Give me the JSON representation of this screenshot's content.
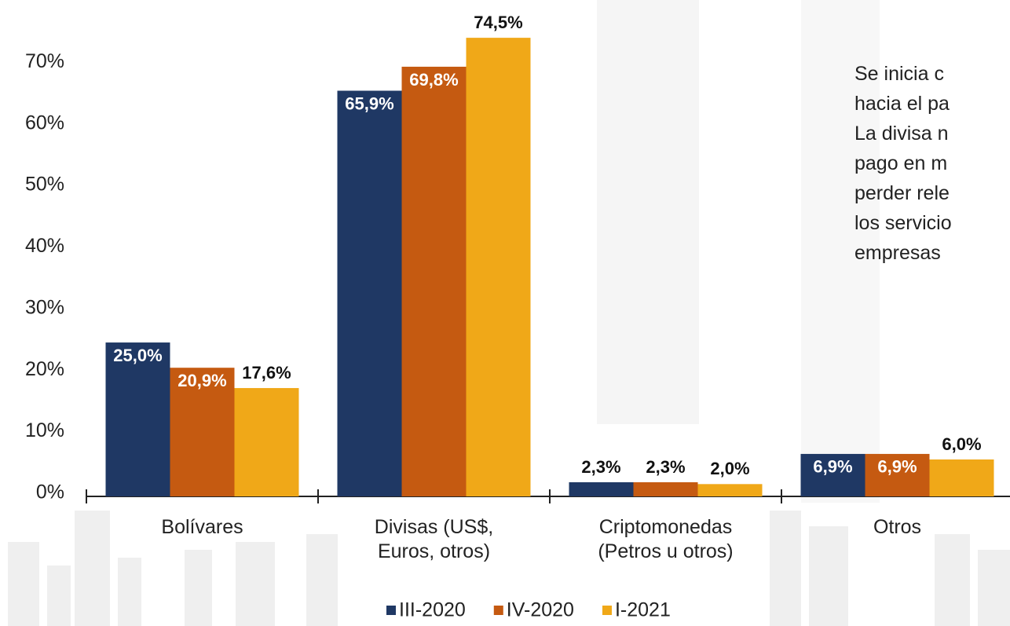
{
  "chart_data": {
    "type": "bar",
    "categories": [
      "Bolívares",
      "Divisas (US$, Euros, otros)",
      "Criptomonedas (Petros u otros)",
      "Otros"
    ],
    "series": [
      {
        "name": "III-2020",
        "color": "#1f3864",
        "values": [
          25.0,
          65.9,
          2.3,
          6.9
        ],
        "value_labels": [
          "25,0%",
          "65,9%",
          "2,3%",
          "6,9%"
        ]
      },
      {
        "name": "IV-2020",
        "color": "#c55a11",
        "values": [
          20.9,
          69.8,
          2.3,
          6.9
        ],
        "value_labels": [
          "20,9%",
          "69,8%",
          "2,3%",
          "6,9%"
        ]
      },
      {
        "name": "I-2021",
        "color": "#f0a818",
        "values": [
          17.6,
          74.5,
          2.0,
          6.0
        ],
        "value_labels": [
          "17,6%",
          "74,5%",
          "2,0%",
          "6,0%"
        ]
      }
    ],
    "ylim": [
      0,
      80
    ],
    "yticks": [
      {
        "value": 0,
        "label": "0%"
      },
      {
        "value": 10,
        "label": "10%"
      },
      {
        "value": 20,
        "label": "20%"
      },
      {
        "value": 30,
        "label": "30%"
      },
      {
        "value": 40,
        "label": "40%"
      },
      {
        "value": 50,
        "label": "50%"
      },
      {
        "value": 60,
        "label": "60%"
      },
      {
        "value": 70,
        "label": "70%"
      }
    ],
    "annotation": [
      "Se inicia c",
      "hacia el pa",
      "La divisa n",
      "pago en m",
      "perder rele",
      "los servicio",
      "empresas"
    ]
  }
}
